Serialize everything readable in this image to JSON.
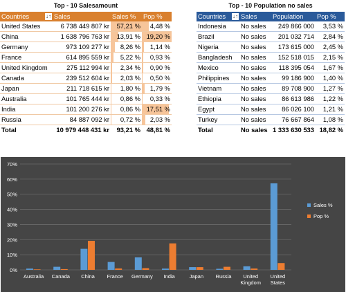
{
  "left_table": {
    "title": "Top - 10 Salesamount",
    "headers": [
      "Countries",
      "Sales",
      "Sales %",
      "Pop %"
    ],
    "rows": [
      {
        "country": "United States",
        "sales": "6 738 449 807 kr",
        "sales_pct": "57,21 %",
        "pop_pct": "4,48 %",
        "sales_val": 57.21,
        "pop_val": 4.48
      },
      {
        "country": "China",
        "sales": "1 638 796 763 kr",
        "sales_pct": "13,91 %",
        "pop_pct": "19,20 %",
        "sales_val": 13.91,
        "pop_val": 19.2
      },
      {
        "country": "Germany",
        "sales": "973 109 277 kr",
        "sales_pct": "8,26 %",
        "pop_pct": "1,14 %",
        "sales_val": 8.26,
        "pop_val": 1.14
      },
      {
        "country": "France",
        "sales": "614 895 559 kr",
        "sales_pct": "5,22 %",
        "pop_pct": "0,93 %",
        "sales_val": 5.22,
        "pop_val": 0.93
      },
      {
        "country": "United Kingdom",
        "sales": "275 112 994 kr",
        "sales_pct": "2,34 %",
        "pop_pct": "0,90 %",
        "sales_val": 2.34,
        "pop_val": 0.9
      },
      {
        "country": "Canada",
        "sales": "239 512 604 kr",
        "sales_pct": "2,03 %",
        "pop_pct": "0,50 %",
        "sales_val": 2.03,
        "pop_val": 0.5
      },
      {
        "country": "Japan",
        "sales": "211 718 615 kr",
        "sales_pct": "1,80 %",
        "pop_pct": "1,79 %",
        "sales_val": 1.8,
        "pop_val": 1.79
      },
      {
        "country": "Australia",
        "sales": "101 765 444 kr",
        "sales_pct": "0,86 %",
        "pop_pct": "0,33 %",
        "sales_val": 0.86,
        "pop_val": 0.33
      },
      {
        "country": "India",
        "sales": "101 200 276 kr",
        "sales_pct": "0,86 %",
        "pop_pct": "17,51 %",
        "sales_val": 0.86,
        "pop_val": 17.51
      },
      {
        "country": "Russia",
        "sales": "84 887 092 kr",
        "sales_pct": "0,72 %",
        "pop_pct": "2,03 %",
        "sales_val": 0.72,
        "pop_val": 2.03
      }
    ],
    "total": {
      "label": "Total",
      "sales": "10 979 448 431 kr",
      "sales_pct": "93,21 %",
      "pop_pct": "48,81 %"
    }
  },
  "right_table": {
    "title": "Top - 10 Population no sales",
    "headers": [
      "Countries",
      "Sales",
      "Population",
      "Pop %"
    ],
    "rows": [
      {
        "country": "Indonesia",
        "sales": "No sales",
        "population": "249 866 000",
        "pop_pct": "3,53 %"
      },
      {
        "country": "Brazil",
        "sales": "No sales",
        "population": "201 032 714",
        "pop_pct": "2,84 %"
      },
      {
        "country": "Nigeria",
        "sales": "No sales",
        "population": "173 615 000",
        "pop_pct": "2,45 %"
      },
      {
        "country": "Bangladesh",
        "sales": "No sales",
        "population": "152 518 015",
        "pop_pct": "2,15 %"
      },
      {
        "country": "Mexico",
        "sales": "No sales",
        "population": "118 395 054",
        "pop_pct": "1,67 %"
      },
      {
        "country": "Philippines",
        "sales": "No sales",
        "population": "99 186 900",
        "pop_pct": "1,40 %"
      },
      {
        "country": "Vietnam",
        "sales": "No sales",
        "population": "89 708 900",
        "pop_pct": "1,27 %"
      },
      {
        "country": "Ethiopia",
        "sales": "No sales",
        "population": "86 613 986",
        "pop_pct": "1,22 %"
      },
      {
        "country": "Egypt",
        "sales": "No sales",
        "population": "86 026 100",
        "pop_pct": "1,21 %"
      },
      {
        "country": "Turkey",
        "sales": "No sales",
        "population": "76 667 864",
        "pop_pct": "1,08 %"
      }
    ],
    "total": {
      "label": "Total",
      "sales": "No sales",
      "population": "1 333 630 533",
      "pop_pct": "18,82 %"
    }
  },
  "chart_data": {
    "type": "bar",
    "categories": [
      "Australia",
      "Canada",
      "China",
      "France",
      "Germany",
      "India",
      "Japan",
      "Russia",
      "United Kingdom",
      "United States"
    ],
    "series": [
      {
        "name": "Sales %",
        "values": [
          0.86,
          2.03,
          13.91,
          5.22,
          8.26,
          0.86,
          1.8,
          0.72,
          2.34,
          57.21
        ],
        "color": "#5b9bd5"
      },
      {
        "name": "Pop %",
        "values": [
          0.33,
          0.5,
          19.2,
          0.93,
          1.14,
          17.51,
          1.79,
          2.03,
          0.9,
          4.48
        ],
        "color": "#ed7d31"
      }
    ],
    "y_ticks": [
      "0%",
      "10%",
      "20%",
      "30%",
      "40%",
      "50%",
      "60%",
      "70%"
    ],
    "ylim": [
      0,
      70
    ],
    "legend_position": "right",
    "grid": true,
    "background": "#454545"
  }
}
